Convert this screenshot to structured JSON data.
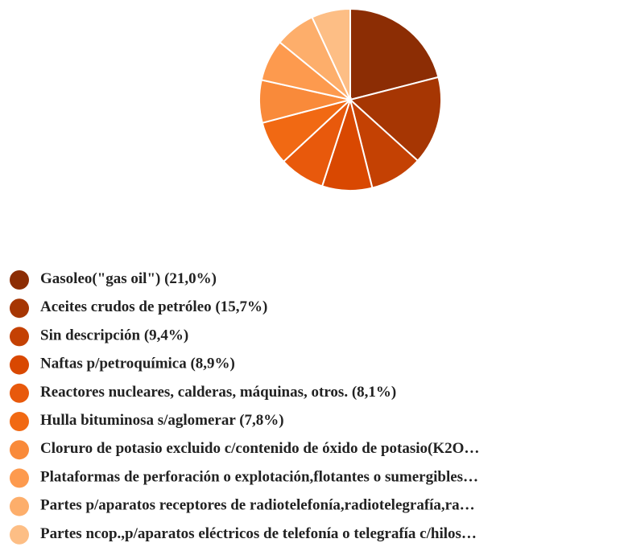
{
  "chart_data": {
    "type": "pie",
    "categories": [
      "Gasoleo(\"gas oil\")",
      "Aceites crudos de petróleo",
      "Sin descripción",
      "Naftas p/petroquímica",
      "Reactores nucleares, calderas, máquinas, otros.",
      "Hulla bituminosa s/aglomerar",
      "Cloruro de potasio excluido c/contenido de óxido de potasio(K2O…",
      "Plataformas de perforación o explotación,flotantes o sumergibles…",
      "Partes p/aparatos receptores de radiotelefonía,radiotelegrafía,ra…",
      "Partes ncop.,p/aparatos eléctricos de telefonía o telegrafía c/hilos…"
    ],
    "values": [
      21.0,
      15.7,
      9.4,
      8.9,
      8.1,
      7.8,
      7.6,
      7.4,
      7.2,
      6.9
    ],
    "value_labels": [
      "(21,0%)",
      "(15,7%)",
      "(9,4%)",
      "(8,9%)",
      "(8,1%)",
      "(7,8%)",
      null,
      null,
      null,
      null
    ],
    "colors": [
      "#8c2d04",
      "#a63603",
      "#c44103",
      "#d94801",
      "#e8590c",
      "#f16913",
      "#f98a3a",
      "#fd9a4e",
      "#fdae6b",
      "#fdbe85"
    ],
    "legend": "bottom"
  }
}
